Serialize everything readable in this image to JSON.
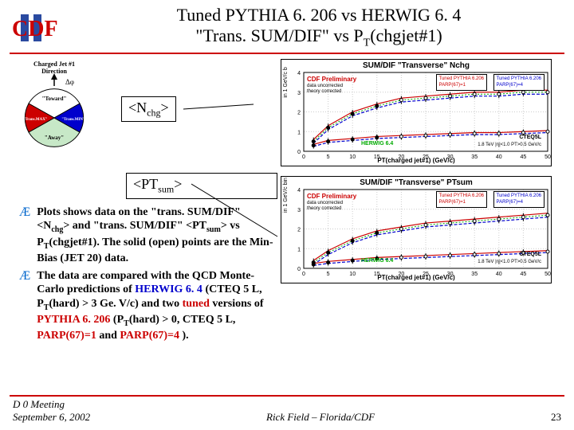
{
  "header": {
    "logo_text": "CDF",
    "title": "Tuned PYTHIA 6. 206 vs HERWIG 6. 4",
    "subtitle_prefix": "\"Trans. SUM/DIF\" vs P",
    "subtitle_sub": "T",
    "subtitle_suffix": "(chgjet#1)"
  },
  "labels": {
    "nchg_pre": "<N",
    "nchg_sub": "chg",
    "nchg_post": ">",
    "ptsum_pre": "<PT",
    "ptsum_sub": "sum",
    "ptsum_post": ">"
  },
  "diagram": {
    "title": "Charged Jet #1",
    "subtitle": "Direction",
    "dphi": "Δφ",
    "toward": "\"Toward\"",
    "away": "\"Away\"",
    "tmax": "\"Trans.MAX\"",
    "tmin": "\"Trans.MIN\""
  },
  "bullets": [
    "Plots shows data on the \"trans. SUM/DIF\" <N_chg> and \"trans. SUM/DIF\" <PT_sum> vs P_T(chgjet#1). The solid (open) points are the Min-Bias (JET 20) data.",
    "The data are compared with the QCD Monte-Carlo predictions of HERWIG 6. 4 (CTEQ 5 L, P_T(hard) > 3 Ge. V/c) and two tuned versions of PYTHIA 6. 206 (P_T(hard) > 0, CTEQ 5 L, PARP(67)=1 and PARP(67)=4 )."
  ],
  "charts": [
    {
      "title": "SUM/DIF \"Transverse\" Nchg",
      "ylabel": "<Nchg> in 1 GeV/c b",
      "xlabel": "PT(charged jet#1)  (GeV/c)",
      "preliminary": "CDF Preliminary",
      "sub1": "data uncorrected",
      "sub2": "theory corrected",
      "legend_left": {
        "t1": "Tuned PYTHIA 6.206",
        "t2": "PARP(67)=1"
      },
      "legend_right": {
        "t1": "Tuned PYTHIA 6.206",
        "t2": "PARP(67)=4"
      },
      "herwig": "HERWIG 6.4",
      "cteq": "CTEQ5L",
      "cteq2": "1.8 TeV |η|<1.0 PT>0.5 GeV/c",
      "xlim": [
        0,
        50
      ],
      "ylim": [
        0,
        4
      ],
      "xtick": 5,
      "ytick": 1,
      "colors": {
        "data": "#000",
        "pythia1": "#c00",
        "pythia2": "#00c",
        "herwig": "#0a0",
        "grid": "#ccc"
      },
      "series": {
        "sum_data": [
          0.5,
          1.2,
          1.9,
          2.3,
          2.6,
          2.7,
          2.8,
          2.9,
          2.9,
          3.0,
          3.0
        ],
        "dif_data": [
          0.3,
          0.5,
          0.6,
          0.7,
          0.75,
          0.8,
          0.85,
          0.9,
          0.9,
          0.95,
          1.0
        ],
        "x": [
          2,
          5,
          10,
          15,
          20,
          25,
          30,
          35,
          40,
          45,
          50
        ]
      }
    },
    {
      "title": "SUM/DIF \"Transverse\" PTsum",
      "ylabel": "<PTsum> in 1 GeV/c bin",
      "xlabel": "PT(charged jet#1)  (GeV/c)",
      "preliminary": "CDF Preliminary",
      "sub1": "data uncorrected",
      "sub2": "theory corrected",
      "legend_left": {
        "t1": "Tuned PYTHIA 6.206",
        "t2": "PARP(67)=1"
      },
      "legend_right": {
        "t1": "Tuned PYTHIA 6.206",
        "t2": "PARP(67)=4"
      },
      "herwig": "HERWIG 6.4",
      "cteq": "CTEQ5L",
      "cteq2": "1.8 TeV |η|<1.0 PT>0.5 GeV/c",
      "xlim": [
        0,
        50
      ],
      "ylim": [
        0,
        4
      ],
      "xtick": 5,
      "ytick": 1,
      "colors": {
        "data": "#000",
        "pythia1": "#c00",
        "pythia2": "#00c",
        "herwig": "#0a0",
        "grid": "#ccc"
      },
      "series": {
        "sum_data": [
          0.3,
          0.8,
          1.4,
          1.8,
          2.0,
          2.2,
          2.3,
          2.4,
          2.5,
          2.6,
          2.7
        ],
        "dif_data": [
          0.2,
          0.3,
          0.4,
          0.5,
          0.55,
          0.6,
          0.65,
          0.7,
          0.75,
          0.8,
          0.85
        ],
        "x": [
          2,
          5,
          10,
          15,
          20,
          25,
          30,
          35,
          40,
          45,
          50
        ]
      }
    }
  ],
  "footer": {
    "left1": "D 0 Meeting",
    "left2": "September 6, 2002",
    "center": "Rick Field – Florida/CDF",
    "page": "23"
  }
}
